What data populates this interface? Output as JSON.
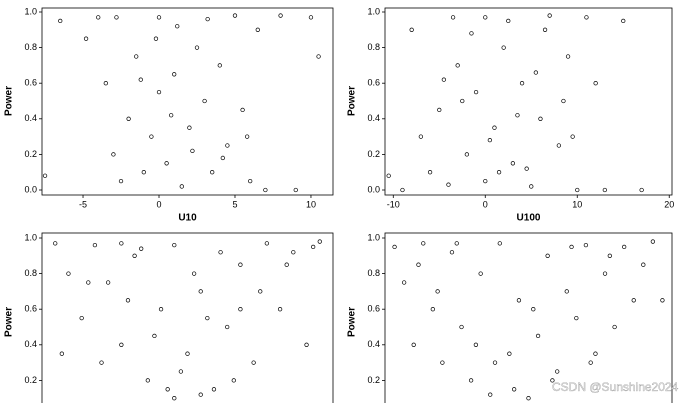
{
  "chart_data": [
    {
      "type": "scatter",
      "y_label": "Power",
      "x_label": "U10",
      "color": "#000000",
      "xlim": [
        -7.7,
        11.45
      ],
      "ylim": [
        0,
        1
      ],
      "xticks": [
        -5,
        0,
        5,
        10
      ],
      "yticks": [
        {
          "value": 0,
          "label": "0.0"
        },
        0.2,
        0.4,
        0.6,
        0.8,
        {
          "value": 1,
          "label": "1.0"
        }
      ],
      "x": [
        -6.5,
        -4.8,
        -3.5,
        -3,
        -2.5,
        -2,
        -1.5,
        -1,
        -0.5,
        0,
        0,
        0.5,
        1,
        1.5,
        2,
        2.5,
        3,
        3.5,
        4,
        4.5,
        5,
        5.5,
        6,
        6.5,
        7,
        8,
        9,
        10,
        -7.5,
        -4,
        -2.8,
        1.2,
        3.2,
        -1.2,
        2.2,
        0.8,
        -0.2,
        4.2,
        10.5,
        5.8
      ],
      "values": [
        0.95,
        0.85,
        0.6,
        0.2,
        0.05,
        0.4,
        0.75,
        0.1,
        0.3,
        0.55,
        0.97,
        0.15,
        0.65,
        0.02,
        0.35,
        0.8,
        0.5,
        0.1,
        0.7,
        0.25,
        0.98,
        0.45,
        0.05,
        0.9,
        0,
        0.98,
        0,
        0.97,
        0.08,
        0.97,
        0.97,
        0.92,
        0.96,
        0.62,
        0.22,
        0.42,
        0.85,
        0.18,
        0.75,
        0.3
      ]
    },
    {
      "type": "scatter",
      "y_label": "Power",
      "x_label": "U100",
      "color": "#000000",
      "xlim": [
        -10.9,
        20.3
      ],
      "ylim": [
        0,
        1
      ],
      "xticks": [
        -10,
        0,
        10,
        20
      ],
      "yticks": [
        {
          "value": 0,
          "label": "0.0"
        },
        0.2,
        0.4,
        0.6,
        0.8,
        {
          "value": 1,
          "label": "1.0"
        }
      ],
      "x": [
        -9,
        -8,
        -6,
        -5,
        -4,
        -3,
        -2,
        -1,
        0,
        0,
        1,
        2,
        3,
        4,
        5,
        6,
        7,
        8,
        9,
        10,
        11,
        13,
        15,
        17,
        -7,
        -3.5,
        2.5,
        -1.5,
        4.5,
        6.5,
        8.5,
        -10.5,
        12,
        0.5,
        -4.5,
        3.5,
        5.5,
        1.5,
        -2.5,
        9.5
      ],
      "values": [
        0,
        0.9,
        0.1,
        0.45,
        0.03,
        0.7,
        0.2,
        0.55,
        0.05,
        0.97,
        0.35,
        0.8,
        0.15,
        0.6,
        0.02,
        0.4,
        0.98,
        0.25,
        0.75,
        0,
        0.97,
        0,
        0.95,
        0,
        0.3,
        0.97,
        0.95,
        0.88,
        0.12,
        0.9,
        0.5,
        0.08,
        0.6,
        0.28,
        0.62,
        0.42,
        0.66,
        0.1,
        0.5,
        0.3
      ]
    },
    {
      "type": "scatter",
      "y_label": "Power",
      "color": "#000000",
      "xlim": [
        -10,
        12
      ],
      "ylim": [
        0,
        1
      ],
      "yticks": [
        0.2,
        0.4,
        0.6,
        0.8,
        {
          "value": 1,
          "label": "1.0"
        }
      ],
      "x": [
        -9,
        -8,
        -7,
        -6,
        -5,
        -4,
        -3,
        -2,
        -1,
        0,
        0,
        1,
        2,
        3,
        4,
        5,
        6,
        7,
        8,
        9,
        10,
        11,
        -5.5,
        -3.5,
        -1.5,
        0.5,
        1.5,
        2.5,
        3.5,
        4.5,
        -6.5,
        -2.5,
        6.5,
        -0.5,
        8.5,
        -8.5,
        10.5,
        2,
        -4,
        5
      ],
      "values": [
        0.97,
        0.8,
        0.55,
        0.96,
        0.75,
        0.4,
        0.9,
        0.2,
        0.6,
        0.1,
        0.96,
        0.35,
        0.7,
        0.15,
        0.5,
        0.85,
        0.3,
        0.97,
        0.6,
        0.92,
        0.4,
        0.98,
        0.3,
        0.65,
        0.45,
        0.25,
        0.8,
        0.55,
        0.92,
        0.2,
        0.75,
        0.94,
        0.7,
        0.15,
        0.85,
        0.35,
        0.95,
        0.12,
        0.97,
        0.6
      ]
    },
    {
      "type": "scatter",
      "y_label": "Power",
      "color": "#000000",
      "xlim": [
        -12,
        18
      ],
      "ylim": [
        0,
        1
      ],
      "yticks": [
        0.2,
        0.4,
        0.6,
        0.8,
        {
          "value": 1,
          "label": "1.0"
        }
      ],
      "x": [
        -11,
        -10,
        -9,
        -8,
        -7,
        -6,
        -5,
        -4,
        -3,
        -2,
        -1,
        0,
        1,
        2,
        3,
        4,
        5,
        6,
        7,
        8,
        9,
        10,
        11,
        12,
        13,
        14,
        15,
        16,
        -8.5,
        -6.5,
        -4.5,
        -2.5,
        -0.5,
        1.5,
        3.5,
        5.5,
        7.5,
        9.5,
        11.5,
        17
      ],
      "values": [
        0.95,
        0.75,
        0.4,
        0.97,
        0.6,
        0.3,
        0.92,
        0.5,
        0.2,
        0.8,
        0.12,
        0.97,
        0.35,
        0.65,
        0.1,
        0.45,
        0.9,
        0.25,
        0.7,
        0.55,
        0.96,
        0.35,
        0.8,
        0.5,
        0.95,
        0.65,
        0.85,
        0.98,
        0.85,
        0.7,
        0.97,
        0.4,
        0.3,
        0.15,
        0.6,
        0.2,
        0.95,
        0.3,
        0.9,
        0.65
      ]
    }
  ],
  "watermark": "CSDN @Sunshine2024"
}
